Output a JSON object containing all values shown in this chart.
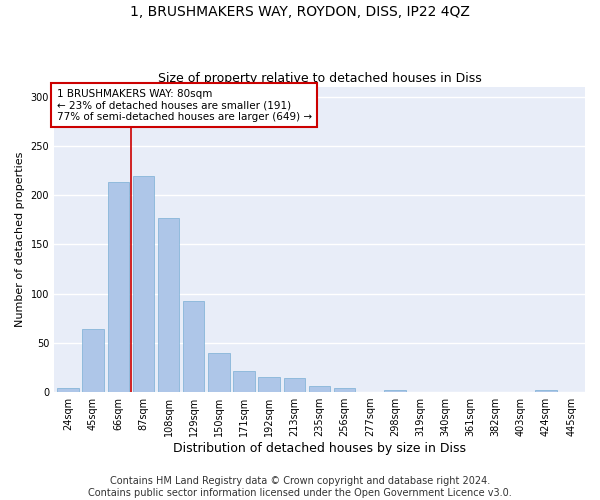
{
  "title": "1, BRUSHMAKERS WAY, ROYDON, DISS, IP22 4QZ",
  "subtitle": "Size of property relative to detached houses in Diss",
  "xlabel": "Distribution of detached houses by size in Diss",
  "ylabel": "Number of detached properties",
  "categories": [
    "24sqm",
    "45sqm",
    "66sqm",
    "87sqm",
    "108sqm",
    "129sqm",
    "150sqm",
    "171sqm",
    "192sqm",
    "213sqm",
    "235sqm",
    "256sqm",
    "277sqm",
    "298sqm",
    "319sqm",
    "340sqm",
    "361sqm",
    "382sqm",
    "403sqm",
    "424sqm",
    "445sqm"
  ],
  "values": [
    4,
    64,
    213,
    220,
    177,
    93,
    40,
    21,
    15,
    14,
    6,
    4,
    0,
    2,
    0,
    0,
    0,
    0,
    0,
    2,
    0
  ],
  "bar_color": "#aec6e8",
  "bar_edgecolor": "#7aafd4",
  "vline_x_index": 2,
  "vline_color": "#cc0000",
  "annotation_text": "1 BRUSHMAKERS WAY: 80sqm\n← 23% of detached houses are smaller (191)\n77% of semi-detached houses are larger (649) →",
  "annotation_box_edgecolor": "#cc0000",
  "annotation_box_facecolor": "#ffffff",
  "footer": "Contains HM Land Registry data © Crown copyright and database right 2024.\nContains public sector information licensed under the Open Government Licence v3.0.",
  "ylim": [
    0,
    310
  ],
  "yticks": [
    0,
    50,
    100,
    150,
    200,
    250,
    300
  ],
  "fig_facecolor": "#ffffff",
  "bg_color": "#e8edf8",
  "grid_color": "#ffffff",
  "title_fontsize": 10,
  "subtitle_fontsize": 9,
  "tick_fontsize": 7,
  "ylabel_fontsize": 8,
  "xlabel_fontsize": 9,
  "footer_fontsize": 7
}
